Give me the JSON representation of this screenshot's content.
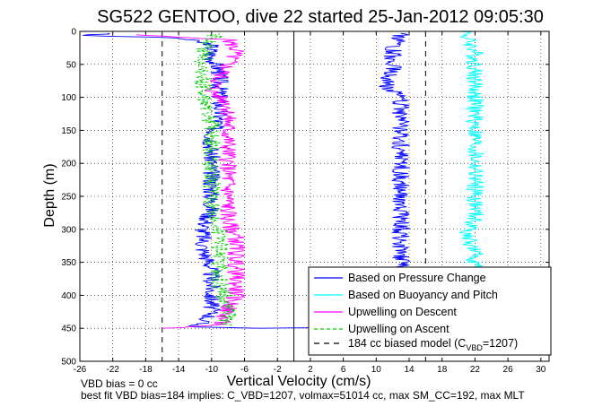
{
  "chart_data": {
    "type": "line",
    "title": "SG522 GENTOO, dive 22 started 25-Jan-2012 09:05:30",
    "xlabel": "Vertical Velocity (cm/s)",
    "ylabel": "Depth (m)",
    "xlim": [
      -26,
      31
    ],
    "ylim": [
      500,
      0
    ],
    "y_reversed": true,
    "grid": true,
    "legend_position": "bottom-right",
    "xticks": [
      -26,
      -22,
      -18,
      -14,
      -10,
      -6,
      -2,
      2,
      6,
      10,
      14,
      18,
      22,
      26,
      30
    ],
    "yticks": [
      0,
      50,
      100,
      150,
      200,
      250,
      300,
      350,
      400,
      450,
      500
    ],
    "zero_line_x": 0,
    "model_lines_x": [
      -16,
      16
    ],
    "series": [
      {
        "name": "Based on Pressure Change",
        "color": "#0000ff",
        "style": "solid",
        "points": [
          [
            -22,
            3
          ],
          [
            -26,
            6
          ],
          [
            -14,
            10
          ],
          [
            -10,
            20
          ],
          [
            -10,
            40
          ],
          [
            -9,
            60
          ],
          [
            -9,
            80
          ],
          [
            -9,
            100
          ],
          [
            -9,
            130
          ],
          [
            -10,
            160
          ],
          [
            -10,
            200
          ],
          [
            -10,
            240
          ],
          [
            -10,
            270
          ],
          [
            -11,
            300
          ],
          [
            -11,
            330
          ],
          [
            -10,
            360
          ],
          [
            -10,
            400
          ],
          [
            -10,
            430
          ],
          [
            -12,
            448
          ],
          [
            -4,
            450
          ],
          [
            4,
            449
          ],
          [
            10,
            448
          ],
          [
            13,
            440
          ],
          [
            13,
            400
          ],
          [
            13,
            350
          ],
          [
            13,
            300
          ],
          [
            13,
            260
          ],
          [
            13,
            220
          ],
          [
            13,
            180
          ],
          [
            13,
            150
          ],
          [
            13,
            120
          ],
          [
            13,
            100
          ],
          [
            11,
            80
          ],
          [
            12,
            60
          ],
          [
            12,
            40
          ],
          [
            12,
            20
          ],
          [
            13,
            10
          ],
          [
            13,
            3
          ]
        ]
      },
      {
        "name": "Based on Buoyancy and Pitch",
        "color": "#00ffff",
        "style": "solid",
        "points": [
          [
            21,
            0
          ],
          [
            21,
            10
          ],
          [
            22,
            30
          ],
          [
            22,
            50
          ],
          [
            22,
            80
          ],
          [
            22,
            120
          ],
          [
            22,
            160
          ],
          [
            22,
            200
          ],
          [
            22,
            240
          ],
          [
            22,
            280
          ],
          [
            21,
            310
          ],
          [
            22,
            340
          ],
          [
            22,
            360
          ]
        ]
      },
      {
        "name": "Upwelling on Descent",
        "color": "#ff00ff",
        "style": "solid",
        "points": [
          [
            -20,
            5
          ],
          [
            -15,
            8
          ],
          [
            -8,
            12
          ],
          [
            -7,
            30
          ],
          [
            -8,
            50
          ],
          [
            -9,
            70
          ],
          [
            -10,
            90
          ],
          [
            -8,
            110
          ],
          [
            -8,
            140
          ],
          [
            -8,
            170
          ],
          [
            -8,
            200
          ],
          [
            -8,
            230
          ],
          [
            -8,
            260
          ],
          [
            -8,
            290
          ],
          [
            -7,
            310
          ],
          [
            -7,
            340
          ],
          [
            -7,
            370
          ],
          [
            -7,
            400
          ],
          [
            -8,
            420
          ],
          [
            -9,
            445
          ],
          [
            -16,
            450
          ]
        ]
      },
      {
        "name": "Upwelling on Ascent",
        "color": "#00cc00",
        "style": "dashed",
        "points": [
          [
            -8,
            445
          ],
          [
            -8,
            420
          ],
          [
            -9,
            380
          ],
          [
            -9,
            340
          ],
          [
            -9,
            300
          ],
          [
            -10,
            260
          ],
          [
            -10,
            220
          ],
          [
            -10,
            180
          ],
          [
            -10,
            140
          ],
          [
            -11,
            100
          ],
          [
            -11,
            60
          ],
          [
            -11,
            30
          ],
          [
            -10,
            10
          ],
          [
            -9,
            3
          ]
        ]
      }
    ],
    "model_legend": {
      "prefix": "184 cc biased model (C",
      "sub": "VBD",
      "suffix": "=1207)"
    }
  },
  "footer": {
    "line1": "VBD bias = 0 cc",
    "line2": "best fit VBD bias=184 implies: C_VBD=1207, volmax=51014 cc, max SM_CC=192, max MLT"
  }
}
